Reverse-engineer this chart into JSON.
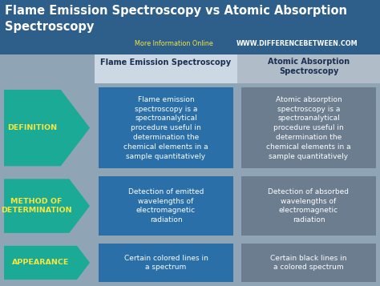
{
  "title_line1": "Flame Emission Spectroscopy vs Atomic Absorption",
  "title_line2": "Spectroscopy",
  "subtitle": "More Information Online",
  "website": "WWW.DIFFERENCEBETWEEN.COM",
  "col1_header": "Flame Emission Spectroscopy",
  "col2_header": "Atomic Absorption\nSpectroscopy",
  "rows": [
    {
      "label": "DEFINITION",
      "col1": "Flame emission\nspectroscopy is a\nspectroanalytical\nprocedure useful in\ndetermination the\nchemical elements in a\nsample quantitatively",
      "col2": "Atomic absorption\nspectroscopy is a\nspectroanalytical\nprocedure useful in\ndetermination the\nchemical elements in a\nsample quantitatively"
    },
    {
      "label": "METHOD OF\nDETERMINATION",
      "col1": "Detection of emitted\nwavelengths of\nelectromagnetic\nradiation",
      "col2": "Detection of absorbed\nwavelengths of\nelectromagnetic\nradiation"
    },
    {
      "label": "APPEARANCE",
      "col1": "Certain colored lines in\na spectrum",
      "col2": "Certain black lines in\na colored spectrum"
    }
  ],
  "bg_color": "#8fa4b5",
  "title_bg": "#2e5f8a",
  "title_color": "#ffffff",
  "col1_header_bg": "#ccd8e4",
  "col2_header_bg": "#b0bcc8",
  "col1_cell_bg": "#2a6fa8",
  "col2_cell_bg": "#6b7d8f",
  "arrow_color": "#1aaa96",
  "arrow_label_color": "#f5e642",
  "subtitle_color": "#f5e642",
  "website_color": "#ffffff",
  "cell_text_color": "#ffffff",
  "header_text_color": "#1a3050"
}
